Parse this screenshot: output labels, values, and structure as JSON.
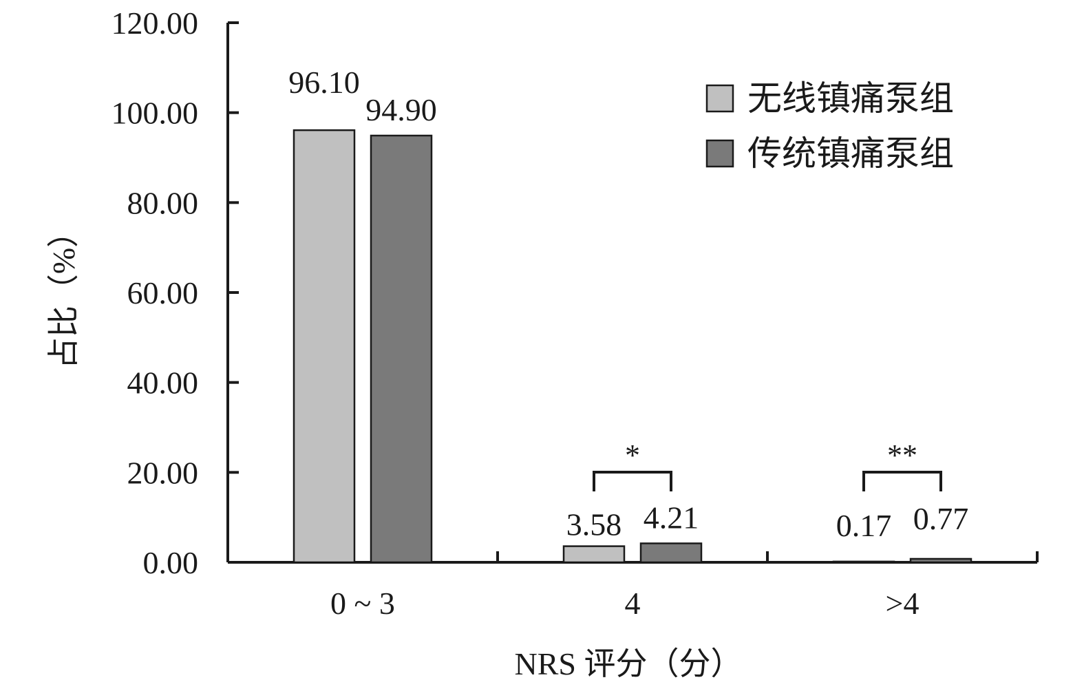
{
  "chart_data": {
    "type": "bar",
    "categories": [
      "0 ~ 3",
      "4",
      ">4"
    ],
    "series": [
      {
        "name": "无线镇痛泵组",
        "values": [
          96.1,
          3.58,
          0.17
        ],
        "labels": [
          "96.10",
          "3.58",
          "0.17"
        ],
        "color": "#c0c0c0"
      },
      {
        "name": "传统镇痛泵组",
        "values": [
          94.9,
          4.21,
          0.77
        ],
        "labels": [
          "94.90",
          "4.21",
          "0.77"
        ],
        "color": "#7a7a7a"
      }
    ],
    "xlabel": "NRS 评分（分）",
    "ylabel": "占比（%）",
    "ylim": [
      0,
      120
    ],
    "yticks": [
      "0.00",
      "20.00",
      "40.00",
      "60.00",
      "80.00",
      "100.00",
      "120.00"
    ],
    "significance": [
      {
        "category": "4",
        "mark": "*"
      },
      {
        "category": ">4",
        "mark": "**"
      }
    ],
    "legend_position": "top-right",
    "grid": false
  }
}
